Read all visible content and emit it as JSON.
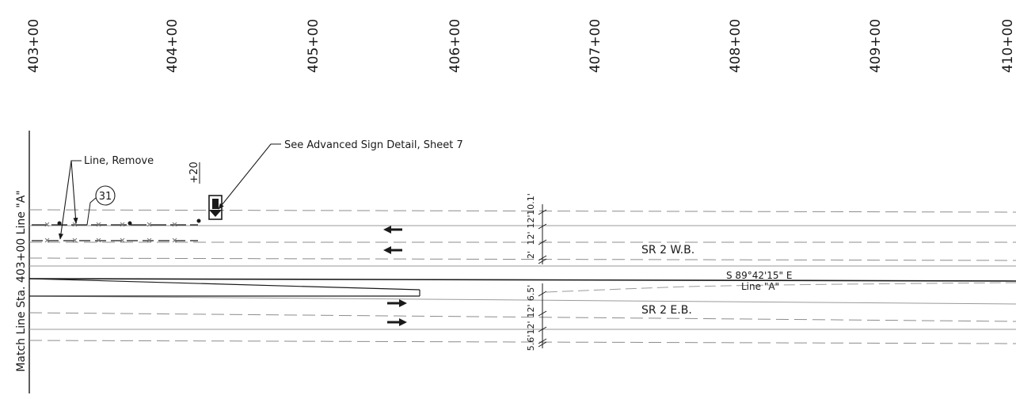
{
  "stations": [
    "403+00",
    "404+00",
    "405+00",
    "406+00",
    "407+00",
    "408+00",
    "409+00",
    "410+00"
  ],
  "match_line": "Match Line Sta. 403+00 Line \"A\"",
  "callouts": {
    "line_remove": "Line, Remove",
    "note_number": "31",
    "plus_station": "+20",
    "sign_detail": "See Advanced Sign Detail, Sheet 7"
  },
  "roadways": {
    "westbound": "SR 2 W.B.",
    "eastbound": "SR 2 E.B."
  },
  "alignment": {
    "bearing": "S 89°42'15\" E",
    "name": "Line \"A\""
  },
  "dimensions": {
    "westbound": [
      "10.1'",
      "12'",
      "12'",
      "2'"
    ],
    "eastbound": [
      "6.5'",
      "12'",
      "12'",
      "5.6'"
    ]
  },
  "colors": {
    "linework": "#1a1a1a",
    "existing": "#8c8c8c"
  },
  "icons": [
    "arrow-left-icon",
    "arrow-right-icon",
    "sign-icon"
  ]
}
